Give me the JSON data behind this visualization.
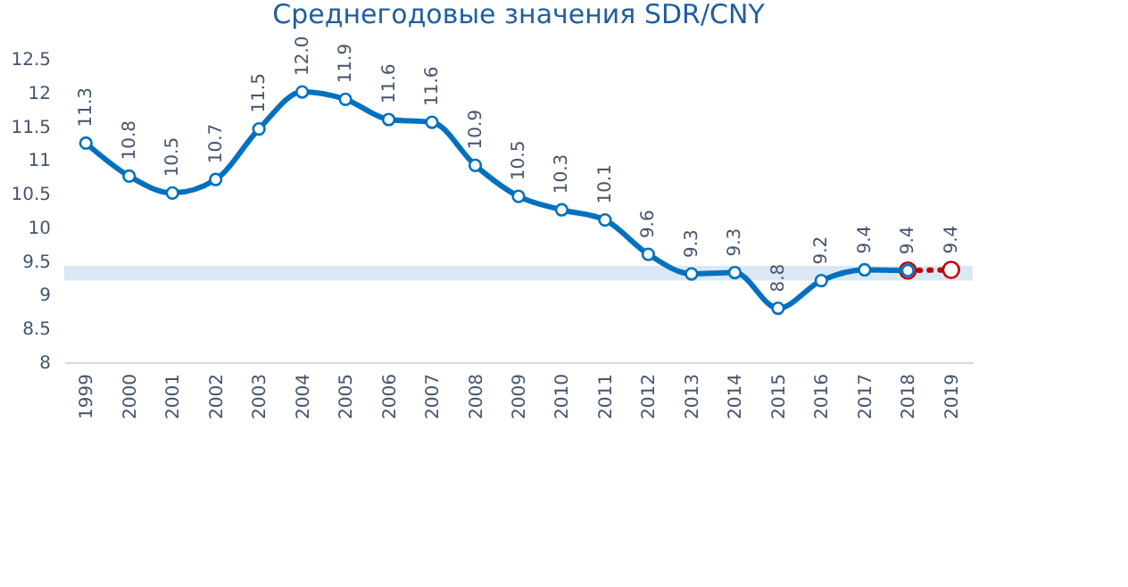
{
  "chart_data": {
    "type": "line",
    "title": "Среднегодовые значения SDR/CNY",
    "categories": [
      "1999",
      "2000",
      "2001",
      "2002",
      "2003",
      "2004",
      "2005",
      "2006",
      "2007",
      "2008",
      "2009",
      "2010",
      "2011",
      "2012",
      "2013",
      "2014",
      "2015",
      "2016",
      "2017",
      "2018",
      "2019"
    ],
    "series": [
      {
        "color": "#0070c0",
        "line_style": "solid",
        "marker": "circle",
        "values": [
          11.25,
          10.76,
          10.51,
          10.71,
          11.46,
          12.01,
          11.9,
          11.6,
          11.56,
          10.92,
          10.46,
          10.26,
          10.11,
          9.6,
          9.31,
          9.33,
          8.8,
          9.21,
          9.37,
          9.36,
          null
        ],
        "value_labels": [
          "11.3",
          "10.8",
          "10.5",
          "10.7",
          "11.5",
          "12.0",
          "11.9",
          "11.6",
          "11.6",
          "10.9",
          "10.5",
          "10.3",
          "10.1",
          "9.6",
          "9.3",
          "9.3",
          "8.8",
          "9.2",
          "9.4",
          "9.4",
          null
        ]
      },
      {
        "color": "#c00000",
        "line_style": "dotted",
        "marker": "circle",
        "values": [
          null,
          null,
          null,
          null,
          null,
          null,
          null,
          null,
          null,
          null,
          null,
          null,
          null,
          null,
          null,
          null,
          null,
          null,
          null,
          9.36,
          9.37
        ],
        "value_labels": [
          null,
          null,
          null,
          null,
          null,
          null,
          null,
          null,
          null,
          null,
          null,
          null,
          null,
          null,
          null,
          null,
          null,
          null,
          null,
          null,
          "9.4"
        ]
      }
    ],
    "ylim": [
      8,
      12.5
    ],
    "yticks": [
      8,
      8.5,
      9,
      9.5,
      10,
      10.5,
      11,
      11.5,
      12,
      12.5
    ],
    "bands": [
      {
        "axis": "y",
        "from": 9.21,
        "to": 9.43,
        "color": "#dae8f5"
      }
    ],
    "grid": false
  }
}
